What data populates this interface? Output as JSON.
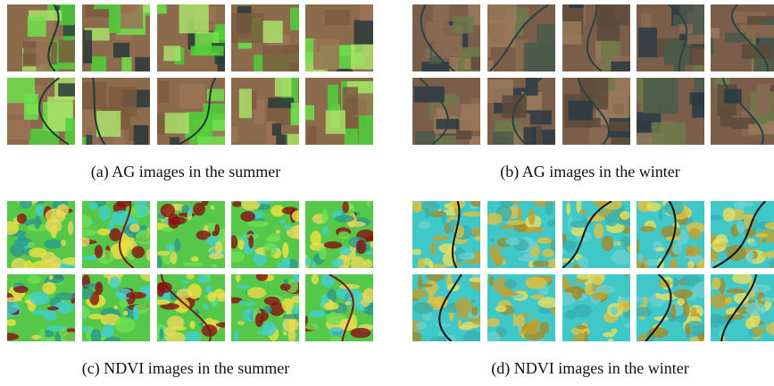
{
  "figure": {
    "panels": [
      {
        "caption": "(a) AG images in the summer"
      },
      {
        "caption": "(b) AG images in the winter"
      },
      {
        "caption": "(c) NDVI images in the summer"
      },
      {
        "caption": "(d) NDVI images in the winter"
      }
    ]
  }
}
